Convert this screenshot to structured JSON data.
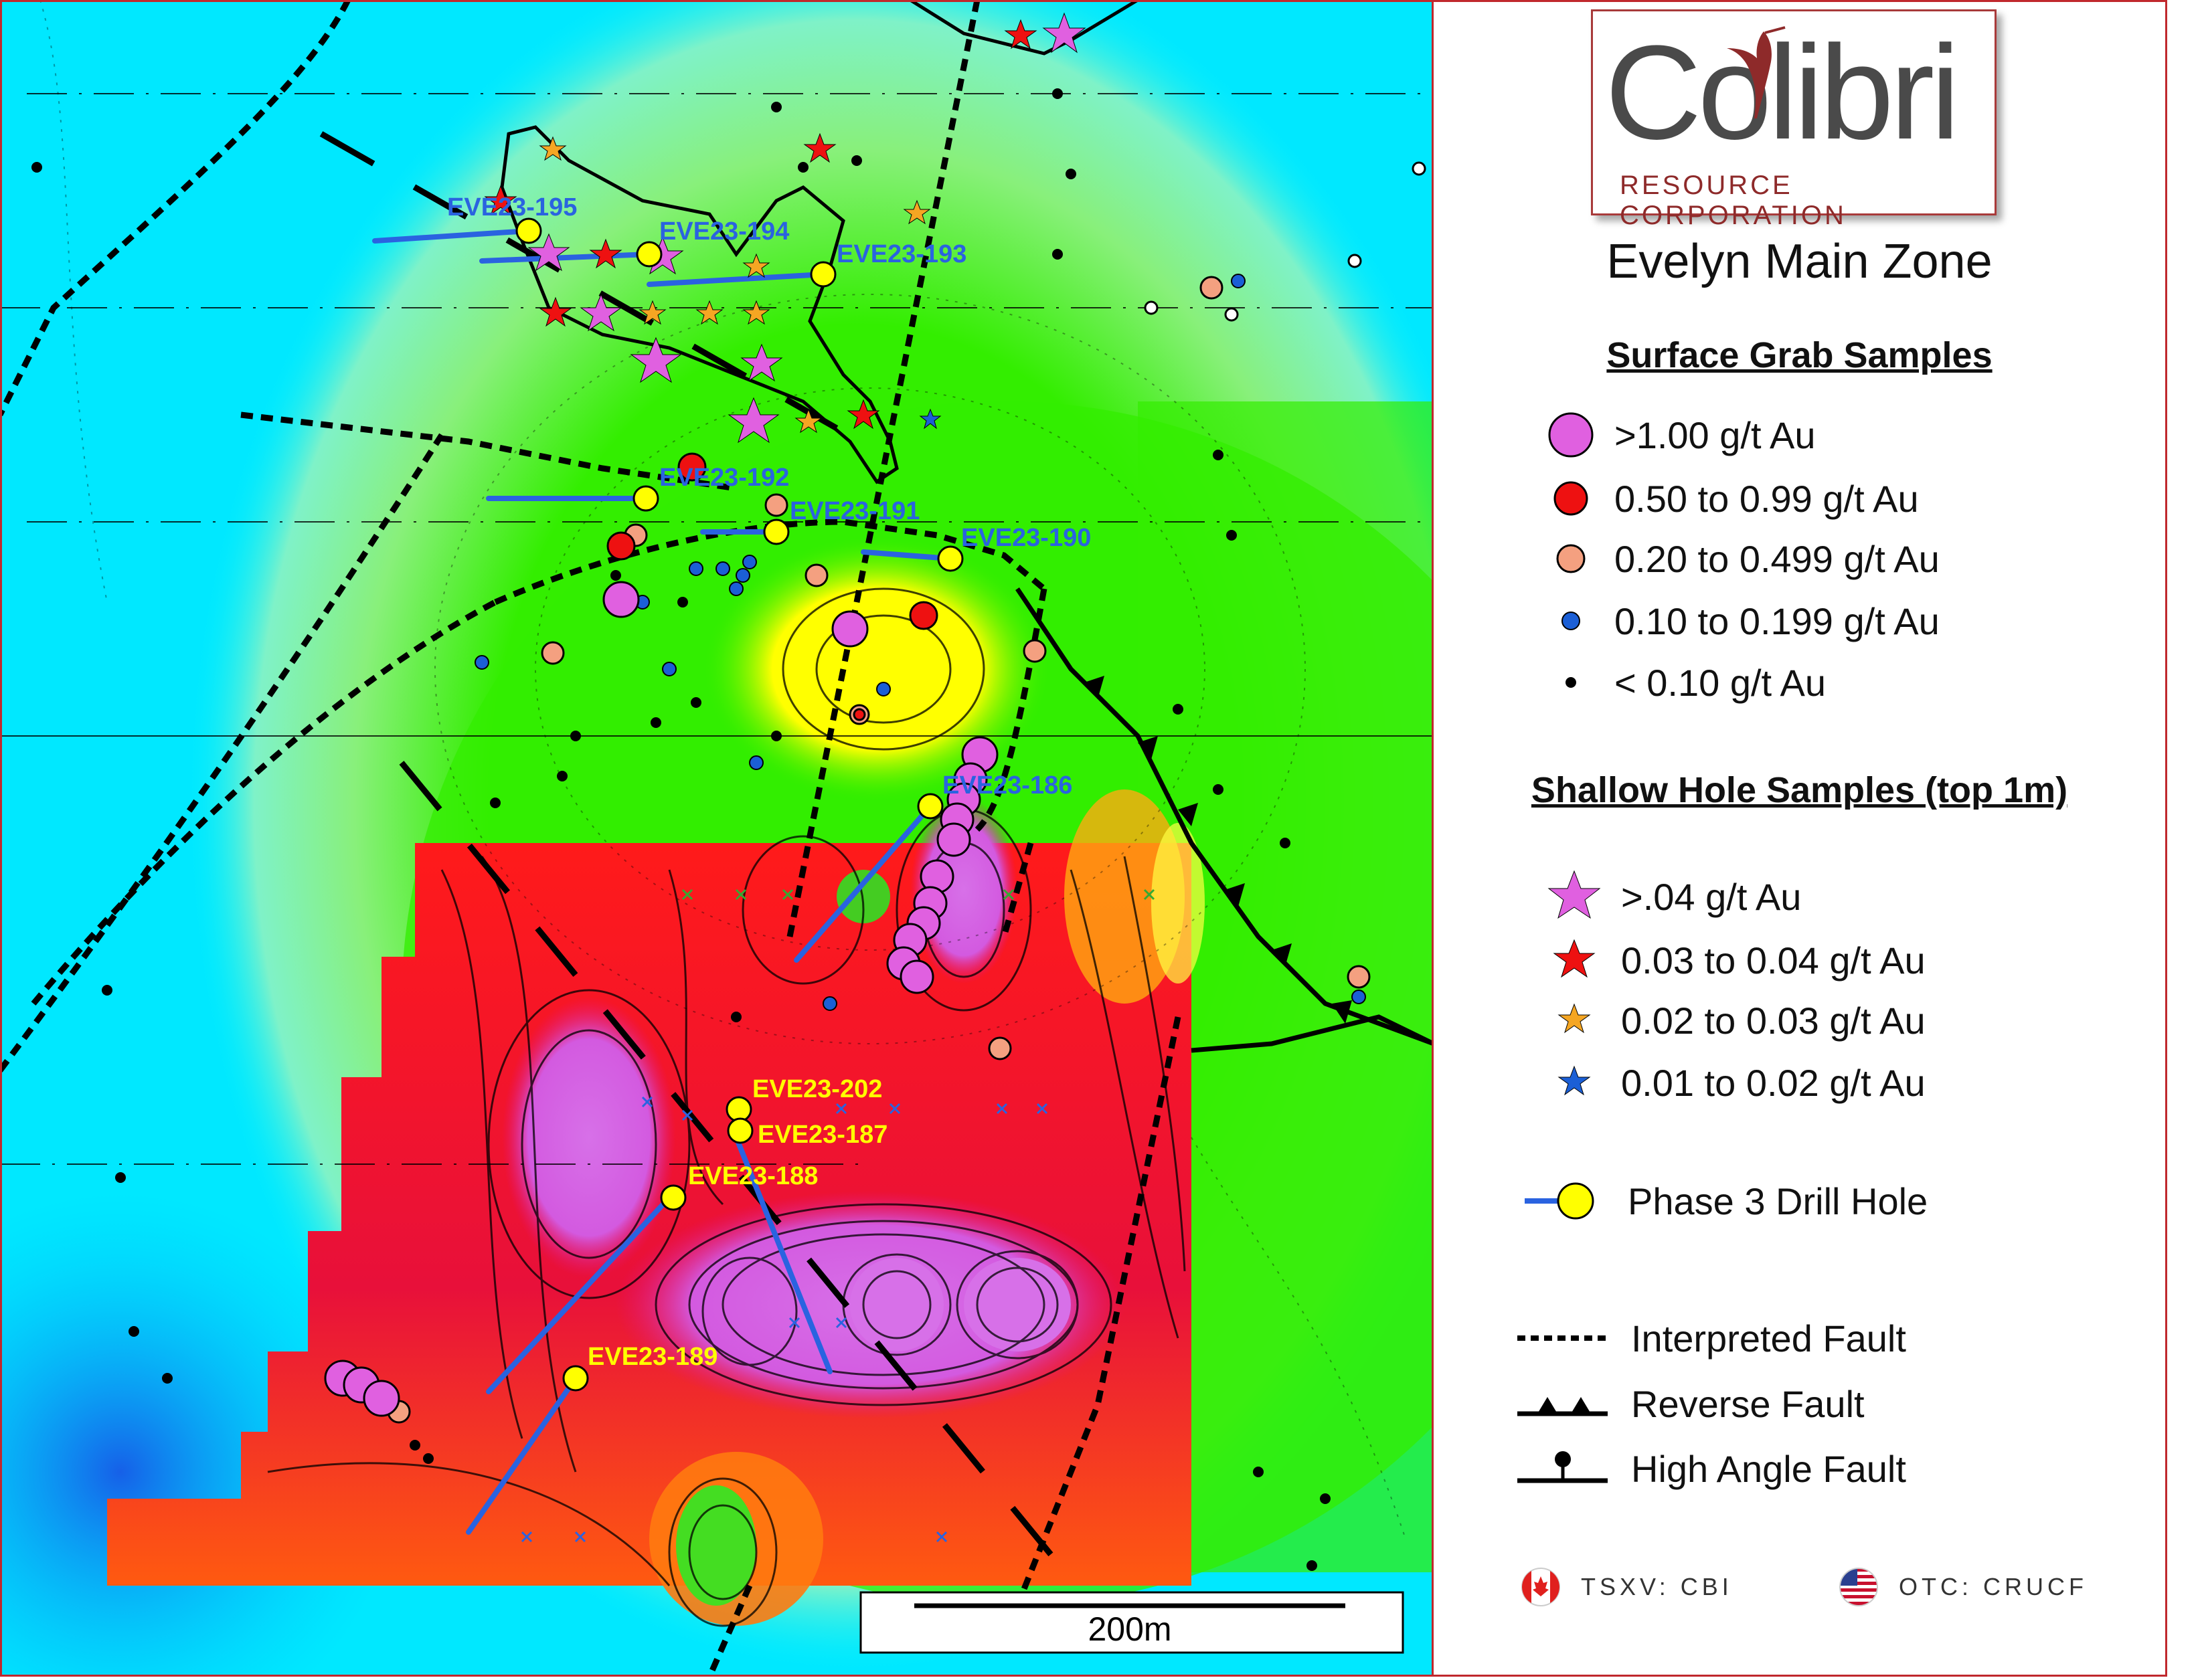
{
  "logo": {
    "word": "Colibri",
    "subtitle": "RESOURCE CORPORATION",
    "bird": "hummingbird-icon"
  },
  "legend": {
    "title": "Evelyn Main Zone",
    "surface_title": "Surface Grab Samples",
    "surface": [
      {
        "label": ">1.00 g/t Au",
        "color": "#e060e0",
        "symbol": "circle-large"
      },
      {
        "label": "0.50 to 0.99 g/t Au",
        "color": "#ee1111",
        "symbol": "circle"
      },
      {
        "label": "0.20 to 0.499 g/t Au",
        "color": "#f4a080",
        "symbol": "circle"
      },
      {
        "label": "0.10 to 0.199 g/t Au",
        "color": "#1b5fd6",
        "symbol": "dot"
      },
      {
        "label": "< 0.10 g/t Au",
        "color": "#000000",
        "symbol": "dot-small"
      }
    ],
    "shallow_title": "Shallow Hole Samples (top 1m)",
    "shallow": [
      {
        "label": ">.04 g/t Au",
        "color": "#e060e0",
        "symbol": "star-large"
      },
      {
        "label": "0.03 to 0.04 g/t Au",
        "color": "#ee1111",
        "symbol": "star"
      },
      {
        "label": "0.02 to 0.03 g/t Au",
        "color": "#f5a623",
        "symbol": "star-small"
      },
      {
        "label": "0.01 to 0.02 g/t Au",
        "color": "#1b5fd6",
        "symbol": "star-small"
      }
    ],
    "drill_label": "Phase 3 Drill Hole",
    "faults": [
      {
        "label": "Interpreted Fault",
        "symbol": "dashed-line"
      },
      {
        "label": "Reverse Fault",
        "symbol": "triangles-line"
      },
      {
        "label": "High Angle Fault",
        "symbol": "ball-line"
      }
    ],
    "tickers": [
      {
        "label": "TSXV: CBI",
        "flag": "canada-flag-icon"
      },
      {
        "label": "OTC: CRUCF",
        "flag": "usa-flag-icon"
      }
    ]
  },
  "map": {
    "scale_label": "200m",
    "drill_holes": [
      {
        "id": "EVE23-195"
      },
      {
        "id": "EVE23-194"
      },
      {
        "id": "EVE23-193"
      },
      {
        "id": "EVE23-192"
      },
      {
        "id": "EVE23-191"
      },
      {
        "id": "EVE23-190"
      },
      {
        "id": "EVE23-186"
      },
      {
        "id": "EVE23-202"
      },
      {
        "id": "EVE23-187"
      },
      {
        "id": "EVE23-188"
      },
      {
        "id": "EVE23-189"
      }
    ]
  }
}
